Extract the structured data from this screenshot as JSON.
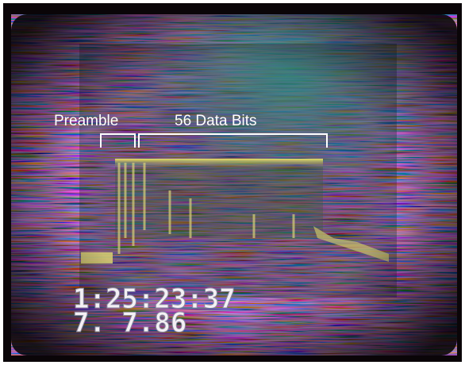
{
  "annotations": {
    "preamble": "Preamble",
    "data_bits": "56 Data Bits"
  },
  "timestamp": {
    "time": "1:25:23:37",
    "date": "7. 7.86"
  }
}
